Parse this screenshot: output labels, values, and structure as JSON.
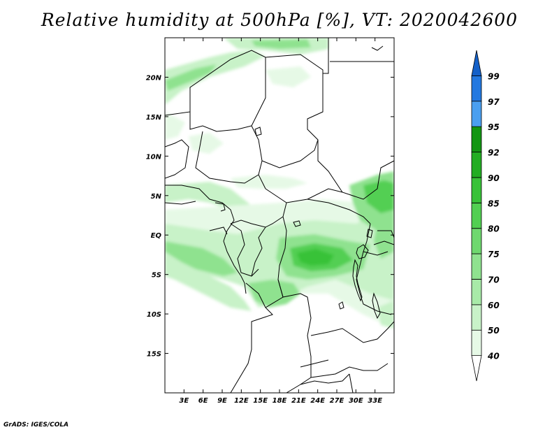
{
  "title": "Relative humidity at 500hPa [%], VT: 2020042600",
  "credit": "GrADS: IGES/COLA",
  "map": {
    "lon_range": [
      0,
      36
    ],
    "lat_range": [
      -20,
      25
    ],
    "lat_labels": [
      {
        "value": 20,
        "label": "20N"
      },
      {
        "value": 15,
        "label": "15N"
      },
      {
        "value": 10,
        "label": "10N"
      },
      {
        "value": 5,
        "label": "5N"
      },
      {
        "value": 0,
        "label": "EQ"
      },
      {
        "value": -5,
        "label": "5S"
      },
      {
        "value": -10,
        "label": "10S"
      },
      {
        "value": -15,
        "label": "15S"
      }
    ],
    "lon_labels": [
      {
        "value": 3,
        "label": "3E"
      },
      {
        "value": 6,
        "label": "6E"
      },
      {
        "value": 9,
        "label": "9E"
      },
      {
        "value": 12,
        "label": "12E"
      },
      {
        "value": 15,
        "label": "15E"
      },
      {
        "value": 18,
        "label": "18E"
      },
      {
        "value": 21,
        "label": "21E"
      },
      {
        "value": 24,
        "label": "24E"
      },
      {
        "value": 27,
        "label": "27E"
      },
      {
        "value": 30,
        "label": "30E"
      },
      {
        "value": 33,
        "label": "33E"
      }
    ]
  },
  "colorbar": {
    "levels": [
      "40",
      "50",
      "60",
      "70",
      "75",
      "80",
      "85",
      "90",
      "92",
      "95",
      "97",
      "99"
    ],
    "colors": [
      "#ffffff",
      "#e6f9e6",
      "#c8f2c8",
      "#a8eaa8",
      "#8fe28f",
      "#6fd86f",
      "#52cf52",
      "#38c238",
      "#22ad22",
      "#129612",
      "#4a9ff0",
      "#2378e0",
      "#1460c8"
    ]
  }
}
